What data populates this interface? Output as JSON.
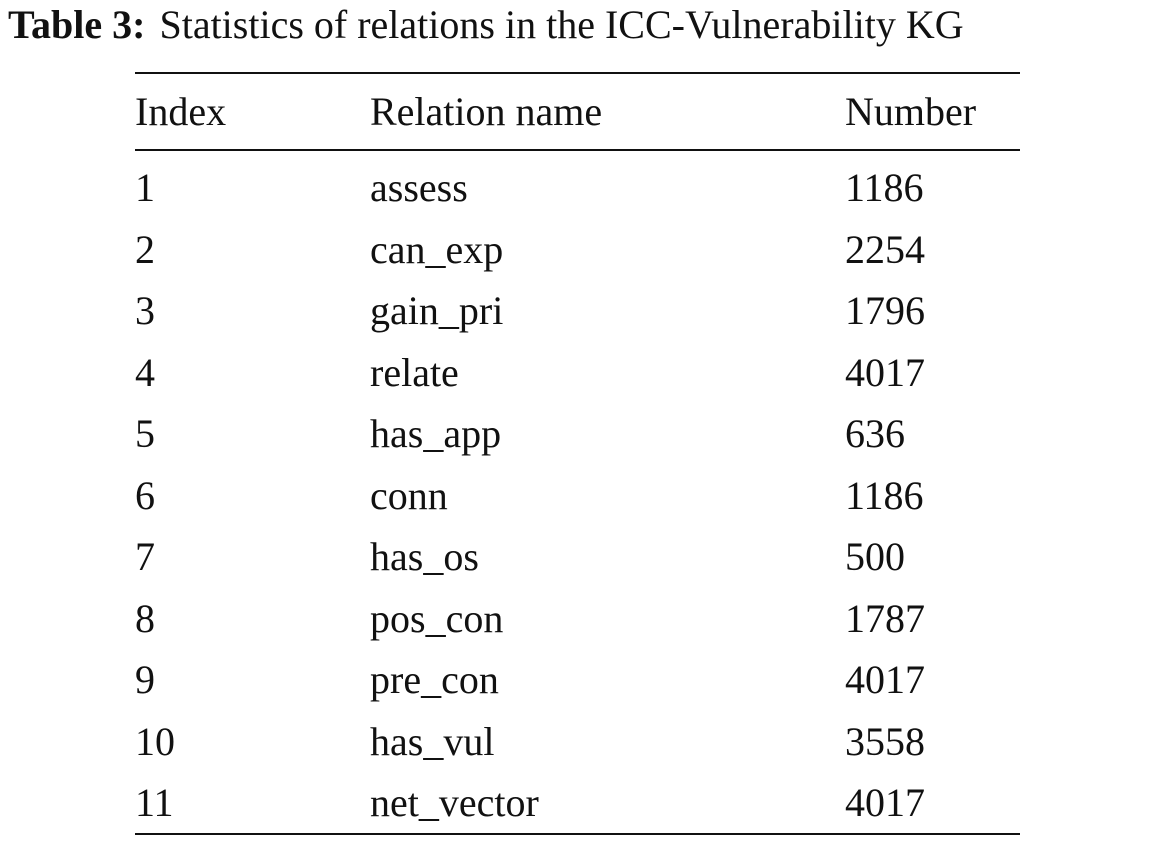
{
  "table": {
    "caption": {
      "label": "Table 3:",
      "text": "Statistics of relations in the ICC-Vulnerability KG"
    },
    "header": [
      "Index",
      "Relation name",
      "Number"
    ],
    "rows": [
      [
        1,
        "assess",
        1186
      ],
      [
        2,
        "can_exp",
        2254
      ],
      [
        3,
        "gain_pri",
        1796
      ],
      [
        4,
        "relate",
        4017
      ],
      [
        5,
        "has_app",
        636
      ],
      [
        6,
        "conn",
        1186
      ],
      [
        7,
        "has_os",
        500
      ],
      [
        8,
        "pos_con",
        1787
      ],
      [
        9,
        "pre_con",
        4017
      ],
      [
        10,
        "has_vul",
        3558
      ],
      [
        11,
        "net_vector",
        4017
      ]
    ]
  }
}
